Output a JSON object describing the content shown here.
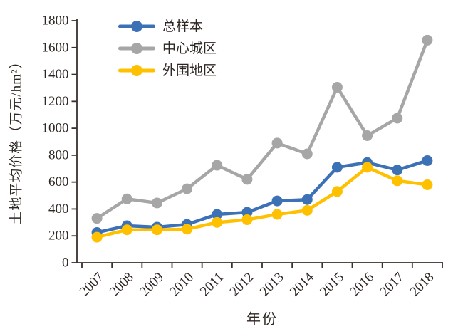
{
  "chart_data": {
    "type": "line",
    "title": "",
    "xlabel": "年份",
    "ylabel": "土地平均价格（万元/hm²）",
    "x": [
      "2007",
      "2008",
      "2009",
      "2010",
      "2011",
      "2012",
      "2013",
      "2014",
      "2015",
      "2016",
      "2017",
      "2018"
    ],
    "ylim": [
      0,
      1800
    ],
    "ytick_step": 200,
    "grid": false,
    "legend_position": "top-inside-left",
    "axis_color": "#3a2f2a",
    "series": [
      {
        "name": "总样本",
        "color": "#3C72B5",
        "values": [
          225,
          275,
          265,
          285,
          360,
          375,
          460,
          470,
          710,
          745,
          690,
          760
        ]
      },
      {
        "name": "中心城区",
        "color": "#A6A6A6",
        "values": [
          330,
          475,
          445,
          550,
          725,
          620,
          890,
          810,
          1305,
          945,
          1075,
          1655
        ]
      },
      {
        "name": "外围地区",
        "color": "#FFC000",
        "values": [
          190,
          245,
          245,
          250,
          300,
          320,
          360,
          390,
          530,
          710,
          610,
          580
        ]
      }
    ]
  }
}
